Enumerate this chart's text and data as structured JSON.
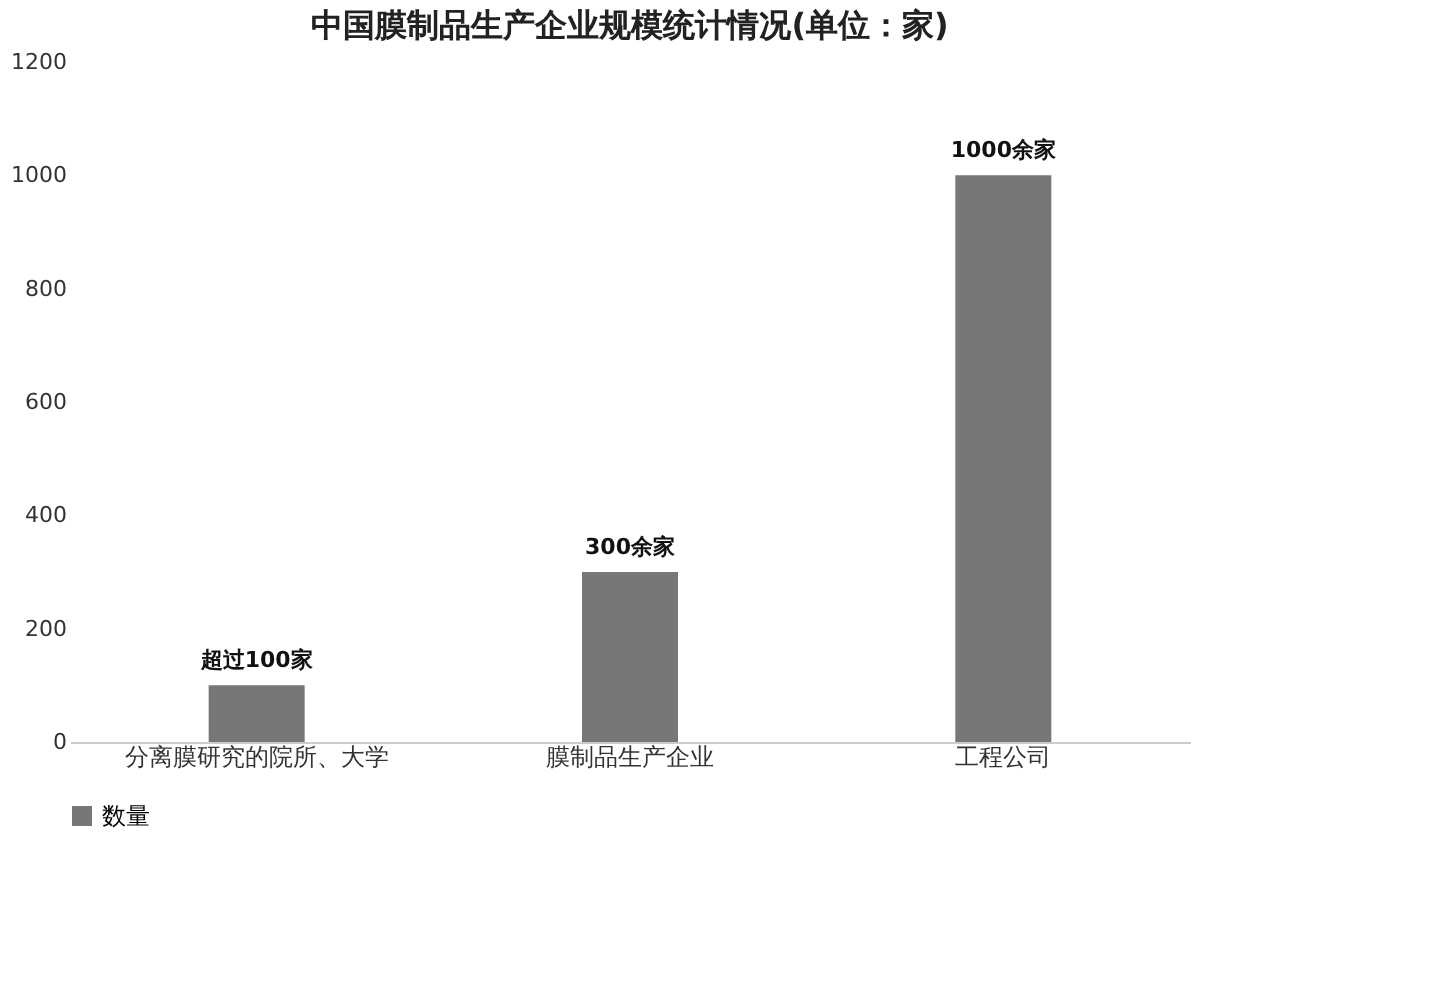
{
  "chart_data": {
    "type": "bar",
    "title": "中国膜制品生产企业规模统计情况(单位：家)",
    "categories": [
      "分离膜研究的院所、大学",
      "膜制品生产企业",
      "工程公司"
    ],
    "series": [
      {
        "name": "数量",
        "color": "#777777",
        "values": [
          100,
          300,
          1000
        ],
        "value_labels": [
          "超过100家",
          "300余家",
          "1000余家"
        ]
      }
    ],
    "ylim": [
      0,
      1200
    ],
    "yticks": [
      0,
      200,
      400,
      600,
      800,
      1000,
      1200
    ],
    "grid": false,
    "legend": "bottom"
  }
}
